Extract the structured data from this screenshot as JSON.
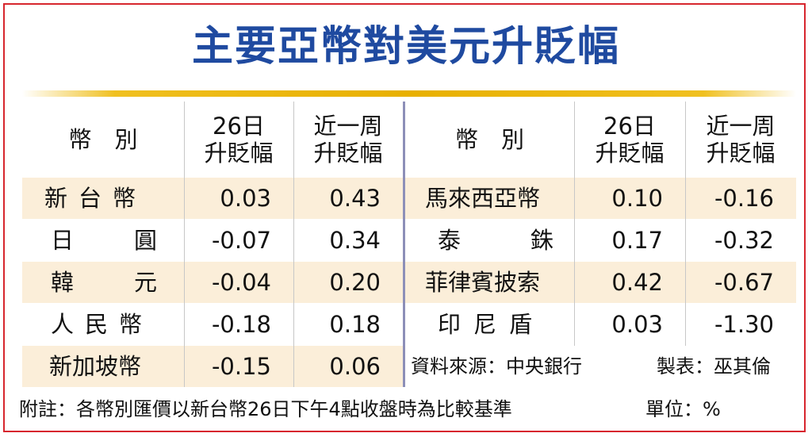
{
  "title": "主要亞幣對美元升貶幅",
  "headers": {
    "currency": "幣　別",
    "day_line1": "26日",
    "day_line2": "升貶幅",
    "week_line1": "近一周",
    "week_line2": "升貶幅"
  },
  "left_rows": [
    {
      "name": "新台幣",
      "day": "0.03",
      "week": "0.43"
    },
    {
      "name": "日　　圓",
      "day": "-0.07",
      "week": "0.34"
    },
    {
      "name": "韓　　元",
      "day": "-0.04",
      "week": "0.20"
    },
    {
      "name": "人民幣",
      "day": "-0.18",
      "week": "0.18"
    },
    {
      "name": "新加坡幣",
      "day": "-0.15",
      "week": "0.06"
    }
  ],
  "right_rows": [
    {
      "name": "馬來西亞幣",
      "day": "0.10",
      "week": "-0.16"
    },
    {
      "name": "泰　　銖",
      "day": "0.17",
      "week": "-0.32"
    },
    {
      "name": "菲律賓披索",
      "day": "0.42",
      "week": "-0.67"
    },
    {
      "name": "印尼盾",
      "day": "0.03",
      "week": "-1.30"
    }
  ],
  "source": "資料來源：中央銀行",
  "maker": "製表：巫其倫",
  "footnote": "附註：各幣別匯價以新台幣26日下午4點收盤時為比較基準",
  "unit": "單位：%"
}
